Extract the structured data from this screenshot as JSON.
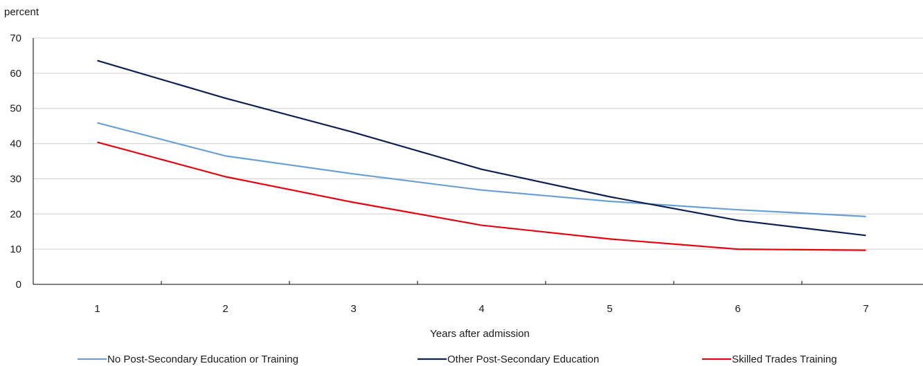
{
  "chart_data": {
    "type": "line",
    "title": "",
    "ylabel": "percent",
    "xlabel": "Years after admission",
    "x": [
      1,
      2,
      3,
      4,
      5,
      6,
      7
    ],
    "x_tick_labels": [
      "1",
      "2",
      "3",
      "4",
      "5",
      "6",
      "7"
    ],
    "ylim": [
      0,
      70
    ],
    "y_ticks": [
      0,
      10,
      20,
      30,
      40,
      50,
      60,
      70
    ],
    "y_tick_labels": [
      "0",
      "10",
      "20",
      "30",
      "40",
      "50",
      "60",
      "70"
    ],
    "grid": true,
    "legend_position": "bottom",
    "series": [
      {
        "name": "No Post-Secondary Education or Training",
        "color": "#6a9fd4",
        "values": [
          45.9,
          36.5,
          31.4,
          26.8,
          23.6,
          21.2,
          19.3
        ]
      },
      {
        "name": "Other Post-Secondary Education",
        "color": "#0d1f4f",
        "values": [
          63.6,
          52.9,
          43.2,
          32.7,
          24.9,
          18.2,
          13.9
        ]
      },
      {
        "name": "Skilled Trades Training",
        "color": "#e3000f",
        "values": [
          40.4,
          30.6,
          23.3,
          16.8,
          12.9,
          10.0,
          9.7
        ]
      }
    ]
  }
}
